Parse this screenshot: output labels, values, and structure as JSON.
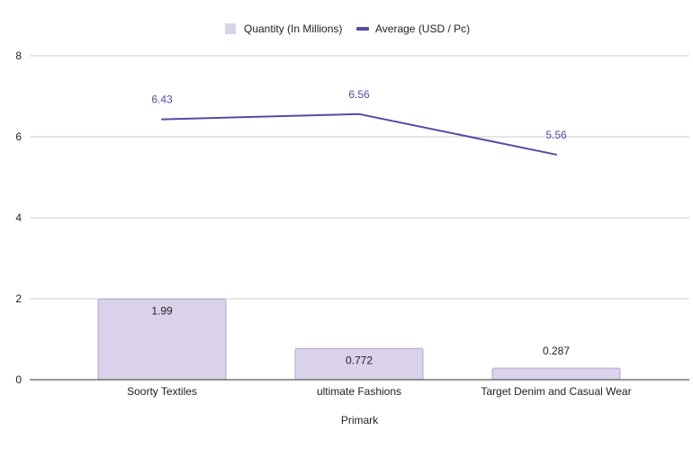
{
  "chart_data": {
    "type": "bar",
    "categories": [
      "Soorty Textiles",
      "ultimate Fashions",
      "Target Denim and Casual Wear"
    ],
    "series": [
      {
        "name": "Quantity (In Millions)",
        "kind": "bar",
        "values": [
          1.99,
          0.772,
          0.287
        ],
        "labels": [
          "1.99",
          "0.772",
          "0.287"
        ],
        "color": "#d9d2e9",
        "stroke": "#b4a7d6"
      },
      {
        "name": "Average (USD / Pc)",
        "kind": "line",
        "values": [
          6.43,
          6.56,
          5.56
        ],
        "labels": [
          "6.43",
          "6.56",
          "5.56"
        ],
        "color": "#5b48a8"
      }
    ],
    "xlabel": "Primark",
    "ylabel": "",
    "ylim": [
      0,
      8
    ],
    "yticks": [
      "0",
      "2",
      "4",
      "6",
      "8"
    ],
    "grid": true,
    "legend_position": "top-center"
  }
}
